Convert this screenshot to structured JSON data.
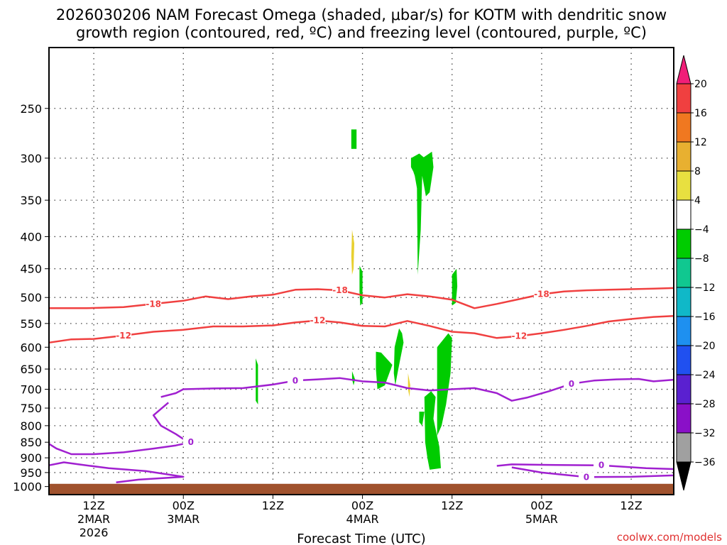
{
  "title": {
    "line1": "2026030206 NAM Forecast Omega (shaded, μbar/s) for KOTM with dendritic snow",
    "line2": "growth region (contoured, red, ºC) and freezing level (contoured, purple, ºC)"
  },
  "credit": "coolwx.com/models",
  "chart_data": {
    "type": "time-height",
    "title": "2026030206 NAM Forecast Omega (shaded, μbar/s) for KOTM with dendritic snow growth region (contoured, red, ºC) and freezing level (contoured, purple, ºC)",
    "xlabel": "Forecast Time (UTC)",
    "ylabel": "",
    "x_ticks": [
      {
        "hour": 6,
        "label": [
          "12Z",
          "2MAR",
          "2026"
        ]
      },
      {
        "hour": 18,
        "label": [
          "00Z",
          "3MAR"
        ]
      },
      {
        "hour": 30,
        "label": [
          "12Z"
        ]
      },
      {
        "hour": 42,
        "label": [
          "00Z",
          "4MAR"
        ]
      },
      {
        "hour": 54,
        "label": [
          "12Z"
        ]
      },
      {
        "hour": 66,
        "label": [
          "00Z",
          "5MAR"
        ]
      },
      {
        "hour": 78,
        "label": [
          "12Z"
        ]
      }
    ],
    "xlim_hours": [
      0,
      83.7
    ],
    "y_ticks": [
      250,
      300,
      350,
      400,
      450,
      500,
      550,
      600,
      650,
      700,
      750,
      800,
      850,
      900,
      950,
      1000
    ],
    "ylim_hpa": [
      200,
      1030
    ],
    "y_scale": "log-pressure",
    "grid": true,
    "colorbar": {
      "labels": [
        "20",
        "16",
        "12",
        "8",
        "4",
        "−4",
        "−8",
        "−12",
        "−16",
        "−20",
        "−24",
        "−28",
        "−32",
        "−36"
      ],
      "colors": [
        "#f01e78",
        "#f04040",
        "#f07820",
        "#e8b030",
        "#e8e040",
        "#ffffff",
        "#00cc00",
        "#10c890",
        "#10b8c8",
        "#1e90f0",
        "#2050f0",
        "#5a20d0",
        "#8a10c8",
        "#a0a0a0",
        "#000000"
      ]
    },
    "dgz_contours": [
      {
        "label": "-18",
        "color": "#f04040",
        "points": [
          [
            0,
            520
          ],
          [
            5,
            520
          ],
          [
            10,
            518
          ],
          [
            14,
            512
          ],
          [
            18,
            506
          ],
          [
            21,
            498
          ],
          [
            24,
            503
          ],
          [
            27,
            498
          ],
          [
            30,
            495
          ],
          [
            33,
            486
          ],
          [
            36,
            485
          ],
          [
            39,
            487
          ],
          [
            42,
            496
          ],
          [
            45,
            500
          ],
          [
            48,
            494
          ],
          [
            51,
            498
          ],
          [
            54,
            504
          ],
          [
            57,
            520
          ],
          [
            60,
            512
          ],
          [
            63,
            503
          ],
          [
            66,
            494
          ],
          [
            69,
            489
          ],
          [
            72,
            487
          ],
          [
            75,
            486
          ],
          [
            78,
            485
          ],
          [
            81,
            484
          ],
          [
            83.7,
            483
          ]
        ]
      },
      {
        "label": "-12",
        "color": "#f04040",
        "points": [
          [
            0,
            590
          ],
          [
            3,
            583
          ],
          [
            6,
            582
          ],
          [
            10,
            575
          ],
          [
            14,
            567
          ],
          [
            18,
            563
          ],
          [
            22,
            556
          ],
          [
            26,
            556
          ],
          [
            30,
            554
          ],
          [
            33,
            548
          ],
          [
            36,
            544
          ],
          [
            39,
            548
          ],
          [
            42,
            555
          ],
          [
            45,
            556
          ],
          [
            48,
            545
          ],
          [
            51,
            555
          ],
          [
            54,
            567
          ],
          [
            57,
            570
          ],
          [
            60,
            580
          ],
          [
            63,
            576
          ],
          [
            66,
            570
          ],
          [
            69,
            563
          ],
          [
            72,
            555
          ],
          [
            75,
            546
          ],
          [
            78,
            541
          ],
          [
            81,
            537
          ],
          [
            83.7,
            535
          ]
        ]
      }
    ],
    "freezing_level_contours": [
      {
        "label": "0",
        "color": "#a020d0",
        "points": [
          [
            15,
            720
          ],
          [
            17,
            710
          ],
          [
            18,
            700
          ],
          [
            22,
            698
          ],
          [
            26,
            697
          ],
          [
            30,
            688
          ],
          [
            33,
            678
          ],
          [
            36,
            675
          ],
          [
            39,
            672
          ],
          [
            42,
            680
          ],
          [
            45,
            683
          ],
          [
            48,
            697
          ],
          [
            51,
            703
          ],
          [
            54,
            700
          ],
          [
            57,
            697
          ],
          [
            60,
            710
          ],
          [
            62,
            730
          ],
          [
            64,
            722
          ],
          [
            67,
            705
          ],
          [
            70,
            686
          ],
          [
            73,
            678
          ],
          [
            76,
            675
          ],
          [
            79,
            674
          ],
          [
            81,
            680
          ],
          [
            83.7,
            676
          ]
        ]
      },
      {
        "label": "0",
        "color": "#a020d0",
        "points": [
          [
            16,
            735
          ],
          [
            14,
            770
          ],
          [
            15,
            800
          ],
          [
            17,
            825
          ],
          [
            18,
            840
          ],
          [
            19,
            850
          ],
          [
            17,
            860
          ],
          [
            14,
            870
          ],
          [
            10,
            882
          ],
          [
            6,
            888
          ],
          [
            3,
            888
          ],
          [
            1,
            870
          ],
          [
            0,
            855
          ]
        ]
      },
      {
        "label": "0",
        "color": "#a020d0",
        "points": [
          [
            0,
            925
          ],
          [
            2,
            915
          ],
          [
            4,
            922
          ],
          [
            8,
            935
          ],
          [
            13,
            945
          ],
          [
            18,
            965
          ],
          [
            12,
            975
          ],
          [
            9,
            985
          ]
        ]
      },
      {
        "label": "0",
        "color": "#a020d0",
        "points": [
          [
            60,
            927
          ],
          [
            62,
            922
          ],
          [
            68,
            924
          ],
          [
            74,
            925
          ],
          [
            80,
            935
          ],
          [
            83.7,
            938
          ]
        ]
      },
      {
        "label": "0",
        "color": "#a020d0",
        "points": [
          [
            62,
            932
          ],
          [
            66,
            950
          ],
          [
            72,
            966
          ],
          [
            78,
            965
          ],
          [
            83.7,
            960
          ]
        ]
      }
    ],
    "omega_regions": [
      {
        "value_range": [
          -8,
          -4
        ],
        "color": "#00cc00",
        "polygons": [
          [
            [
              40.5,
              270
            ],
            [
              41.2,
              270
            ],
            [
              41.2,
              290
            ],
            [
              40.5,
              290
            ]
          ],
          [
            [
              48.5,
              300
            ],
            [
              49.6,
              295
            ],
            [
              50.2,
              299
            ],
            [
              51.3,
              293
            ],
            [
              51.5,
              310
            ],
            [
              51,
              340
            ],
            [
              50.5,
              345
            ],
            [
              50,
              320
            ],
            [
              49.8,
              390
            ],
            [
              49.4,
              460
            ],
            [
              49.3,
              335
            ],
            [
              49,
              320
            ],
            [
              48.8,
              315
            ],
            [
              48.5,
              310
            ]
          ],
          [
            [
              41.6,
              445
            ],
            [
              42,
              455
            ],
            [
              42,
              510
            ],
            [
              41.7,
              515
            ],
            [
              41.6,
              490
            ]
          ],
          [
            [
              54,
              460
            ],
            [
              54.6,
              450
            ],
            [
              54.7,
              480
            ],
            [
              54.5,
              510
            ],
            [
              54,
              515
            ]
          ],
          [
            [
              43.8,
              610
            ],
            [
              44.5,
              612
            ],
            [
              46,
              640
            ],
            [
              45,
              690
            ],
            [
              44,
              700
            ],
            [
              43.8,
              650
            ]
          ],
          [
            [
              46.3,
              600
            ],
            [
              46.9,
              560
            ],
            [
              47.3,
              570
            ],
            [
              47.5,
              590
            ],
            [
              46.8,
              650
            ],
            [
              46.4,
              690
            ],
            [
              46.2,
              660
            ]
          ],
          [
            [
              52,
              600
            ],
            [
              53.5,
              570
            ],
            [
              54,
              580
            ],
            [
              53.8,
              660
            ],
            [
              53.2,
              740
            ],
            [
              52.6,
              800
            ],
            [
              52,
              830
            ]
          ],
          [
            [
              50.3,
              720
            ],
            [
              51.2,
              705
            ],
            [
              51.8,
              720
            ],
            [
              51.5,
              780
            ],
            [
              52.3,
              865
            ],
            [
              52.5,
              935
            ],
            [
              51,
              940
            ],
            [
              50.7,
              900
            ],
            [
              50.4,
              850
            ]
          ],
          [
            [
              49.6,
              760
            ],
            [
              50.3,
              760
            ],
            [
              50,
              800
            ],
            [
              49.6,
              790
            ]
          ],
          [
            [
              27.7,
              625
            ],
            [
              28,
              640
            ],
            [
              28,
              740
            ],
            [
              27.7,
              730
            ]
          ],
          [
            [
              40.6,
              655
            ],
            [
              41,
              675
            ],
            [
              40.8,
              690
            ],
            [
              40.6,
              675
            ]
          ]
        ]
      },
      {
        "value_range": [
          4,
          8
        ],
        "color": "#e8d030",
        "polygons": [
          [
            [
              40.6,
              390
            ],
            [
              40.9,
              410
            ],
            [
              40.8,
              450
            ],
            [
              40.6,
              460
            ],
            [
              40.5,
              430
            ]
          ],
          [
            [
              48.1,
              660
            ],
            [
              48.4,
              690
            ],
            [
              48.3,
              720
            ],
            [
              48.1,
              700
            ]
          ]
        ]
      }
    ],
    "terrain_hpa": 990
  }
}
